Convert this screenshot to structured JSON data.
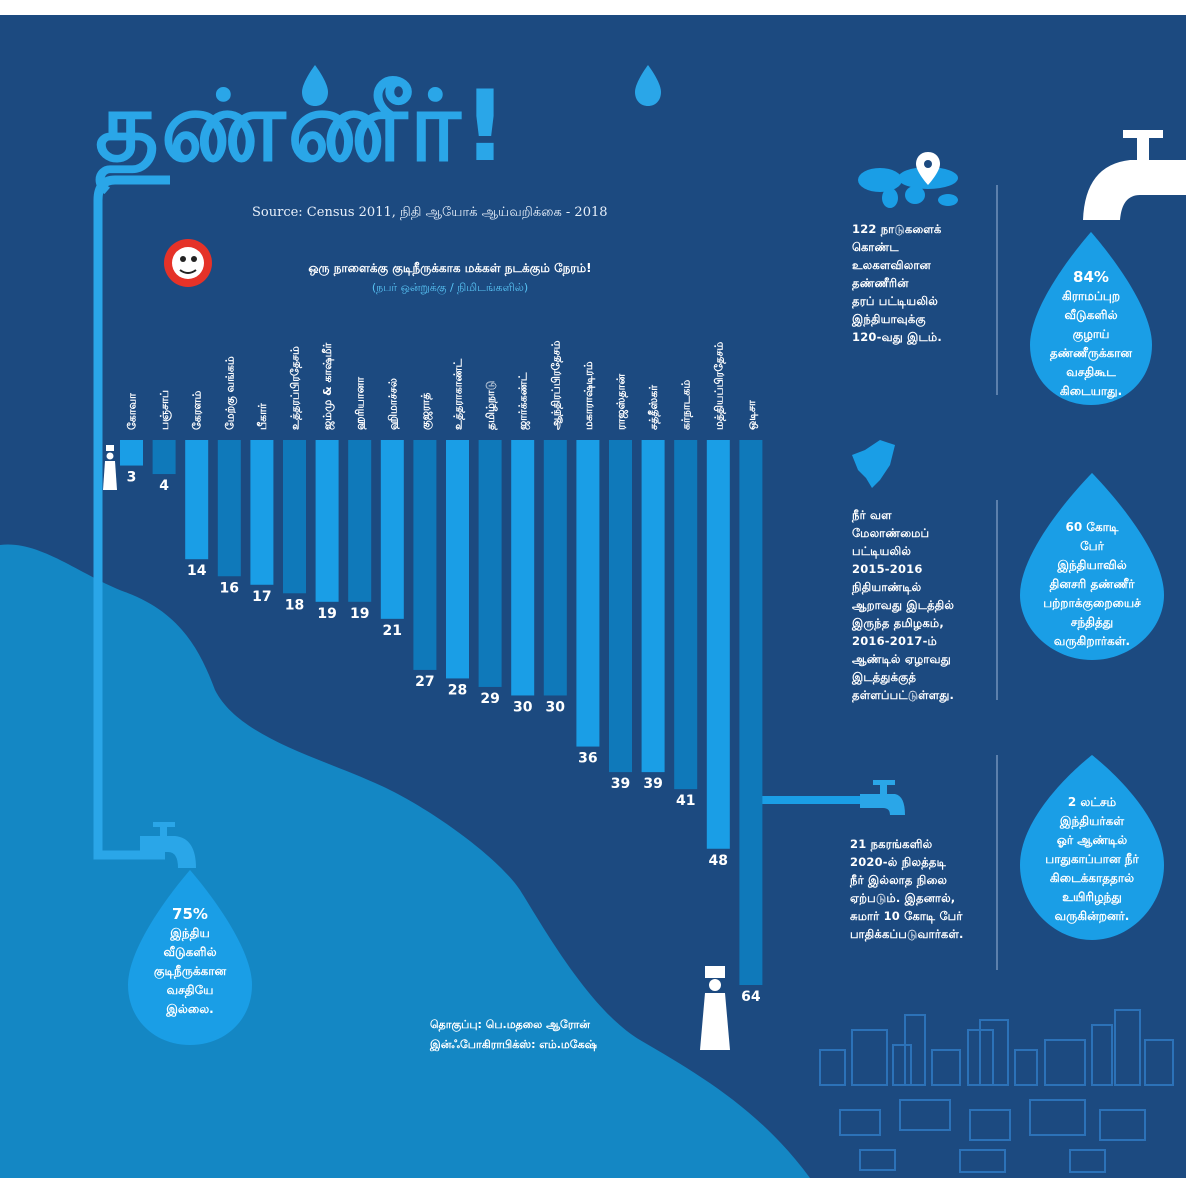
{
  "title": "தண்ணீர்!",
  "source": "Source: Census 2011, நிதி ஆயோக் ஆய்வறிக்கை - 2018",
  "chart_data": {
    "type": "bar",
    "orientation": "vertical-hanging",
    "title": "ஒரு நாளைக்கு குடிநீருக்காக மக்கள் நடக்கும் நேரம்!",
    "ylabel": "(நபர் ஒன்றுக்கு / நிமிடங்களில்)",
    "xlabel": "",
    "ylim": [
      0,
      64
    ],
    "categories": [
      "கோவா",
      "பஞ்சாப்",
      "கேரளம்",
      "மேற்கு வங்கம்",
      "பீகார்",
      "உத்தரப்பிரதேசம்",
      "ஜம்மு & காஷ்மீர்",
      "ஹரியானா",
      "ஹிமாச்சல்",
      "குஜராத்",
      "உத்தராகாண்ட்",
      "தமிழ்நாடு",
      "ஜார்க்கண்ட்",
      "ஆந்திரப்பிரதேசம்",
      "மகாராஷ்டிரம்",
      "ராஜஸ்தான்",
      "சத்தீஸ்கர்",
      "கர்நாடகம்",
      "மத்தியப்பிரதேசம்",
      "ஒடிசா"
    ],
    "values": [
      3,
      4,
      14,
      16,
      17,
      18,
      19,
      19,
      21,
      27,
      28,
      29,
      30,
      30,
      36,
      39,
      39,
      41,
      48,
      64
    ]
  },
  "facts": {
    "ranking": [
      "122 நாடுகளைக்",
      "கொண்ட",
      "உலகளவிலான",
      "தண்ணீரின்",
      "தரப் பட்டியலில்",
      "இந்தியாவுக்கு",
      "120-வது இடம்."
    ],
    "tamilnadu": [
      "நீர் வள",
      "மேலாண்மைப்",
      "பட்டியலில்",
      "2015-2016",
      "நிதியாண்டில்",
      "ஆறாவது இடத்தில்",
      "இருந்த தமிழகம்,",
      "2016-2017-ம்",
      "ஆண்டில் ஏழாவது",
      "இடத்துக்குத்",
      "தள்ளப்பட்டுள்ளது."
    ],
    "cities": [
      "21 நகரங்களில்",
      "2020-ல் நிலத்தடி",
      "நீர் இல்லாத நிலை",
      "ஏற்படும். இதனால்,",
      "சுமார் 10 கோடி பேர்",
      "பாதிக்கப்படுவார்கள்."
    ]
  },
  "drops": {
    "rural_tap": [
      "84%",
      "கிராமப்புற",
      "வீடுகளில்",
      "குழாய்",
      "தண்ணீருக்கான",
      "வசதிகூட",
      "கிடையாது."
    ],
    "shortage": [
      "60 கோடி",
      "பேர்",
      "இந்தியாவில்",
      "தினசரி தண்ணீர்",
      "பற்றாக்குறையைச்",
      "சந்தித்து",
      "வருகிறார்கள்."
    ],
    "deaths": [
      "2 லட்சம்",
      "இந்தியர்கள்",
      "ஓர் ஆண்டில்",
      "பாதுகாப்பான நீர்",
      "கிடைக்காததால்",
      "உயிரிழந்து",
      "வருகின்றனர்."
    ],
    "households": [
      "75%",
      "இந்திய",
      "வீடுகளில்",
      "குடிநீருக்கான",
      "வசதியே",
      "இல்லை."
    ]
  },
  "credit": {
    "line1": "தொகுப்பு: பெ.மதலை ஆரோன்",
    "line2": "இன்ஃபோகிராபிக்ஸ்: எம்.மகேஷ்"
  },
  "colors": {
    "background": "#1c4a80",
    "water": "#1487c4",
    "bar_light": "#1a9ee6",
    "bar_dark": "#0f79ba",
    "title": "#2aa6e8",
    "drop": "#1a9ee6",
    "city": "#2c72b8"
  }
}
